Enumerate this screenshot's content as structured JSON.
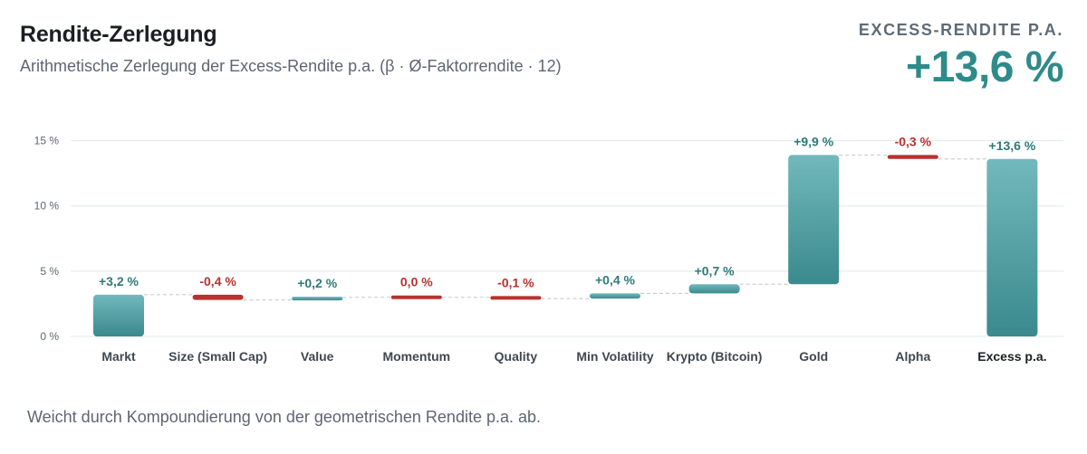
{
  "header": {
    "title": "Rendite-Zerlegung",
    "subtitle": "Arithmetische Zerlegung der Excess-Rendite p.a. (β · Ø-Faktorrendite · 12)"
  },
  "kpi": {
    "label": "EXCESS-RENDITE P.A.",
    "value": "+13,6 %"
  },
  "footnote": "Weicht durch Kompoundierung von der geometrischen Rendite p.a. ab.",
  "chart_data": {
    "type": "bar",
    "subtype": "waterfall",
    "categories": [
      "Markt",
      "Size (Small Cap)",
      "Value",
      "Momentum",
      "Quality",
      "Min Volatility",
      "Krypto (Bitcoin)",
      "Gold",
      "Alpha",
      "Excess p.a."
    ],
    "values": [
      3.2,
      -0.4,
      0.2,
      0.0,
      -0.1,
      0.4,
      0.7,
      9.9,
      -0.3,
      13.6
    ],
    "value_labels": [
      "+3,2 %",
      "-0,4 %",
      "+0,2 %",
      "0,0 %",
      "-0,1 %",
      "+0,4 %",
      "+0,7 %",
      "+9,9 %",
      "-0,3 %",
      "+13,6 %"
    ],
    "total_index": 9,
    "y_ticks": [
      0,
      5,
      10,
      15
    ],
    "y_tick_labels": [
      "0 %",
      "5 %",
      "10 %",
      "15 %"
    ],
    "ylim": [
      0,
      15.5
    ],
    "grid": true,
    "colors": {
      "positive_top": "#72b8bc",
      "positive_bottom": "#3a8a8d",
      "negative": "#b8322e",
      "positive_label": "#2f7a7a",
      "negative_label": "#b8322e",
      "grid": "#dcebeb",
      "connector": "#c9cfd4"
    }
  }
}
